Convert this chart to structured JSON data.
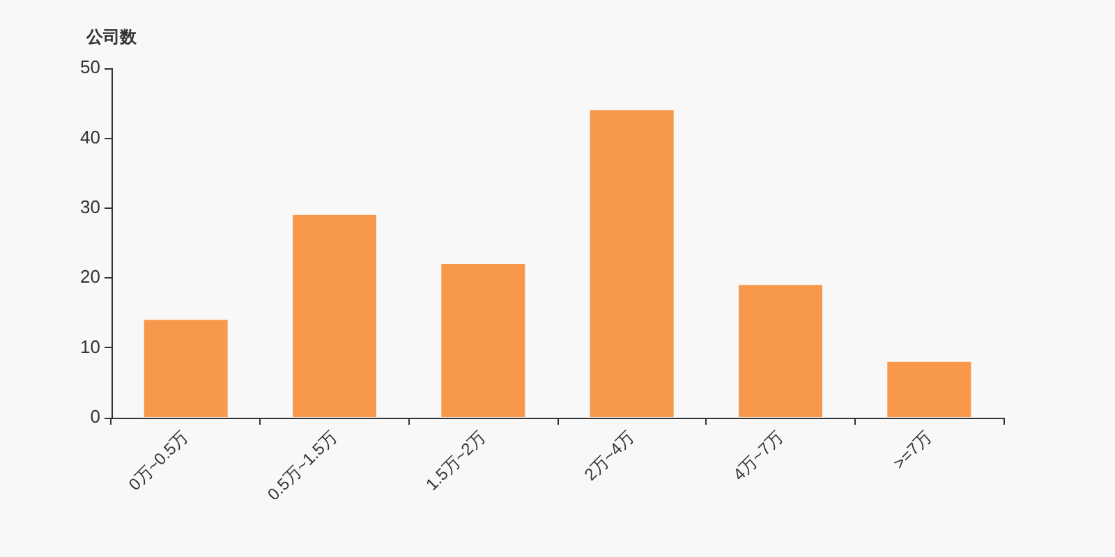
{
  "chart_data": {
    "type": "bar",
    "ylabel": "公司数",
    "categories": [
      "0万~0.5万",
      "0.5万~1.5万",
      "1.5万~2万",
      "2万~4万",
      "4万~7万",
      ">=7万"
    ],
    "values": [
      14,
      29,
      22,
      44,
      19,
      8
    ],
    "color": "#f7984a",
    "ylim": [
      0,
      50
    ],
    "yticks": [
      0,
      10,
      20,
      30,
      40,
      50
    ],
    "grid": false
  }
}
